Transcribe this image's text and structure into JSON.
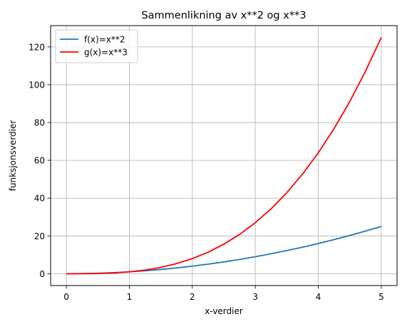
{
  "chart_data": {
    "type": "line",
    "title": "Sammenlikning av x**2 og x**3",
    "xlabel": "x-verdier",
    "ylabel": "funksjonsverdier",
    "xlim": [
      -0.25,
      5.25
    ],
    "ylim": [
      -6.25,
      131.25
    ],
    "x_ticks": [
      0,
      1,
      2,
      3,
      4,
      5
    ],
    "y_ticks": [
      0,
      20,
      40,
      60,
      80,
      100,
      120
    ],
    "grid": true,
    "legend": "upper-left",
    "x": [
      0,
      0.25,
      0.5,
      0.75,
      1,
      1.25,
      1.5,
      1.75,
      2,
      2.25,
      2.5,
      2.75,
      3,
      3.25,
      3.5,
      3.75,
      4,
      4.25,
      4.5,
      4.75,
      5
    ],
    "series": [
      {
        "name": "f(x)=x**2",
        "color": "#1f77b4",
        "values": [
          0,
          0.0625,
          0.25,
          0.5625,
          1,
          1.5625,
          2.25,
          3.0625,
          4,
          5.0625,
          6.25,
          7.5625,
          9,
          10.5625,
          12.25,
          14.0625,
          16,
          18.0625,
          20.25,
          22.5625,
          25
        ]
      },
      {
        "name": "g(x)=x**3",
        "color": "#ff0000",
        "values": [
          0,
          0.015625,
          0.125,
          0.421875,
          1,
          1.953125,
          3.375,
          5.359375,
          8,
          11.390625,
          15.625,
          20.796875,
          27,
          34.328125,
          42.875,
          52.734375,
          64,
          76.765625,
          91.125,
          107.171875,
          125
        ]
      }
    ]
  }
}
